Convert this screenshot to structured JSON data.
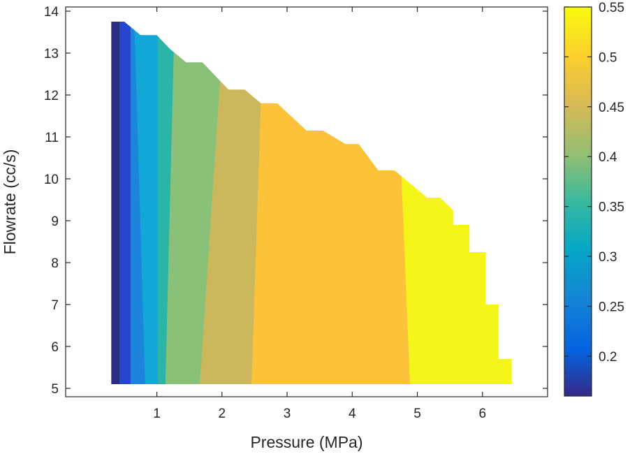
{
  "chart_data": {
    "type": "contourf",
    "title": "",
    "xlabel": "Pressure (MPa)",
    "ylabel": "Flowrate (cc/s)",
    "xlim": [
      -0.4,
      7.0
    ],
    "ylim": [
      4.8,
      14.1
    ],
    "x_ticks": [
      1,
      2,
      3,
      4,
      5,
      6
    ],
    "y_ticks": [
      5,
      6,
      7,
      8,
      9,
      10,
      11,
      12,
      13,
      14
    ],
    "colorbar": {
      "colormap": "parula",
      "range": [
        0.16,
        0.55
      ],
      "ticks": [
        0.2,
        0.25,
        0.3,
        0.35,
        0.4,
        0.45,
        0.5,
        0.55
      ],
      "tick_labels": [
        "0.2",
        "0.25",
        "0.3",
        "0.35",
        "0.4",
        "0.45",
        "0.5",
        "0.55"
      ]
    },
    "domain_boundary": [
      [
        0.3,
        13.75
      ],
      [
        0.5,
        13.75
      ],
      [
        0.75,
        13.43
      ],
      [
        1.0,
        13.43
      ],
      [
        1.2,
        13.1
      ],
      [
        1.45,
        12.78
      ],
      [
        1.7,
        12.78
      ],
      [
        2.1,
        12.13
      ],
      [
        2.35,
        12.13
      ],
      [
        2.6,
        11.8
      ],
      [
        2.85,
        11.8
      ],
      [
        3.3,
        11.15
      ],
      [
        3.55,
        11.15
      ],
      [
        3.9,
        10.83
      ],
      [
        4.1,
        10.83
      ],
      [
        4.4,
        10.2
      ],
      [
        4.65,
        10.2
      ],
      [
        5.15,
        9.55
      ],
      [
        5.35,
        9.55
      ],
      [
        5.55,
        9.25
      ],
      [
        5.55,
        8.9
      ],
      [
        5.8,
        8.9
      ],
      [
        5.8,
        8.25
      ],
      [
        6.05,
        8.25
      ],
      [
        6.05,
        7.0
      ],
      [
        6.25,
        7.0
      ],
      [
        6.25,
        5.7
      ],
      [
        6.45,
        5.7
      ],
      [
        6.45,
        5.1
      ],
      [
        0.3,
        5.1
      ]
    ],
    "contour_levels": [
      {
        "low": 0.16,
        "high": 0.18,
        "color": "#2a2d86",
        "bottom_x": 0.43,
        "top_x": 0.43
      },
      {
        "low": 0.18,
        "high": 0.2,
        "color": "#2647cd",
        "bottom_x": 0.6,
        "top_x": 0.6
      },
      {
        "low": 0.2,
        "high": 0.25,
        "color": "#1c84db",
        "bottom_x": 0.83,
        "top_x": 0.65
      },
      {
        "low": 0.25,
        "high": 0.3,
        "color": "#13a7d8",
        "bottom_x": 1.02,
        "top_x": 1.02
      },
      {
        "low": 0.3,
        "high": 0.35,
        "color": "#2bb4a8",
        "bottom_x": 1.13,
        "top_x": 1.28
      },
      {
        "low": 0.35,
        "high": 0.4,
        "color": "#8ac179",
        "bottom_x": 1.65,
        "top_x": 2.05
      },
      {
        "low": 0.4,
        "high": 0.45,
        "color": "#ccb85c",
        "bottom_x": 2.45,
        "top_x": 2.65
      },
      {
        "low": 0.45,
        "high": 0.5,
        "color": "#fcc23a",
        "bottom_x": 4.9,
        "top_x": 4.65
      },
      {
        "low": 0.5,
        "high": 0.55,
        "color": "#f6f51a",
        "bottom_x": null,
        "top_x": null
      }
    ]
  }
}
